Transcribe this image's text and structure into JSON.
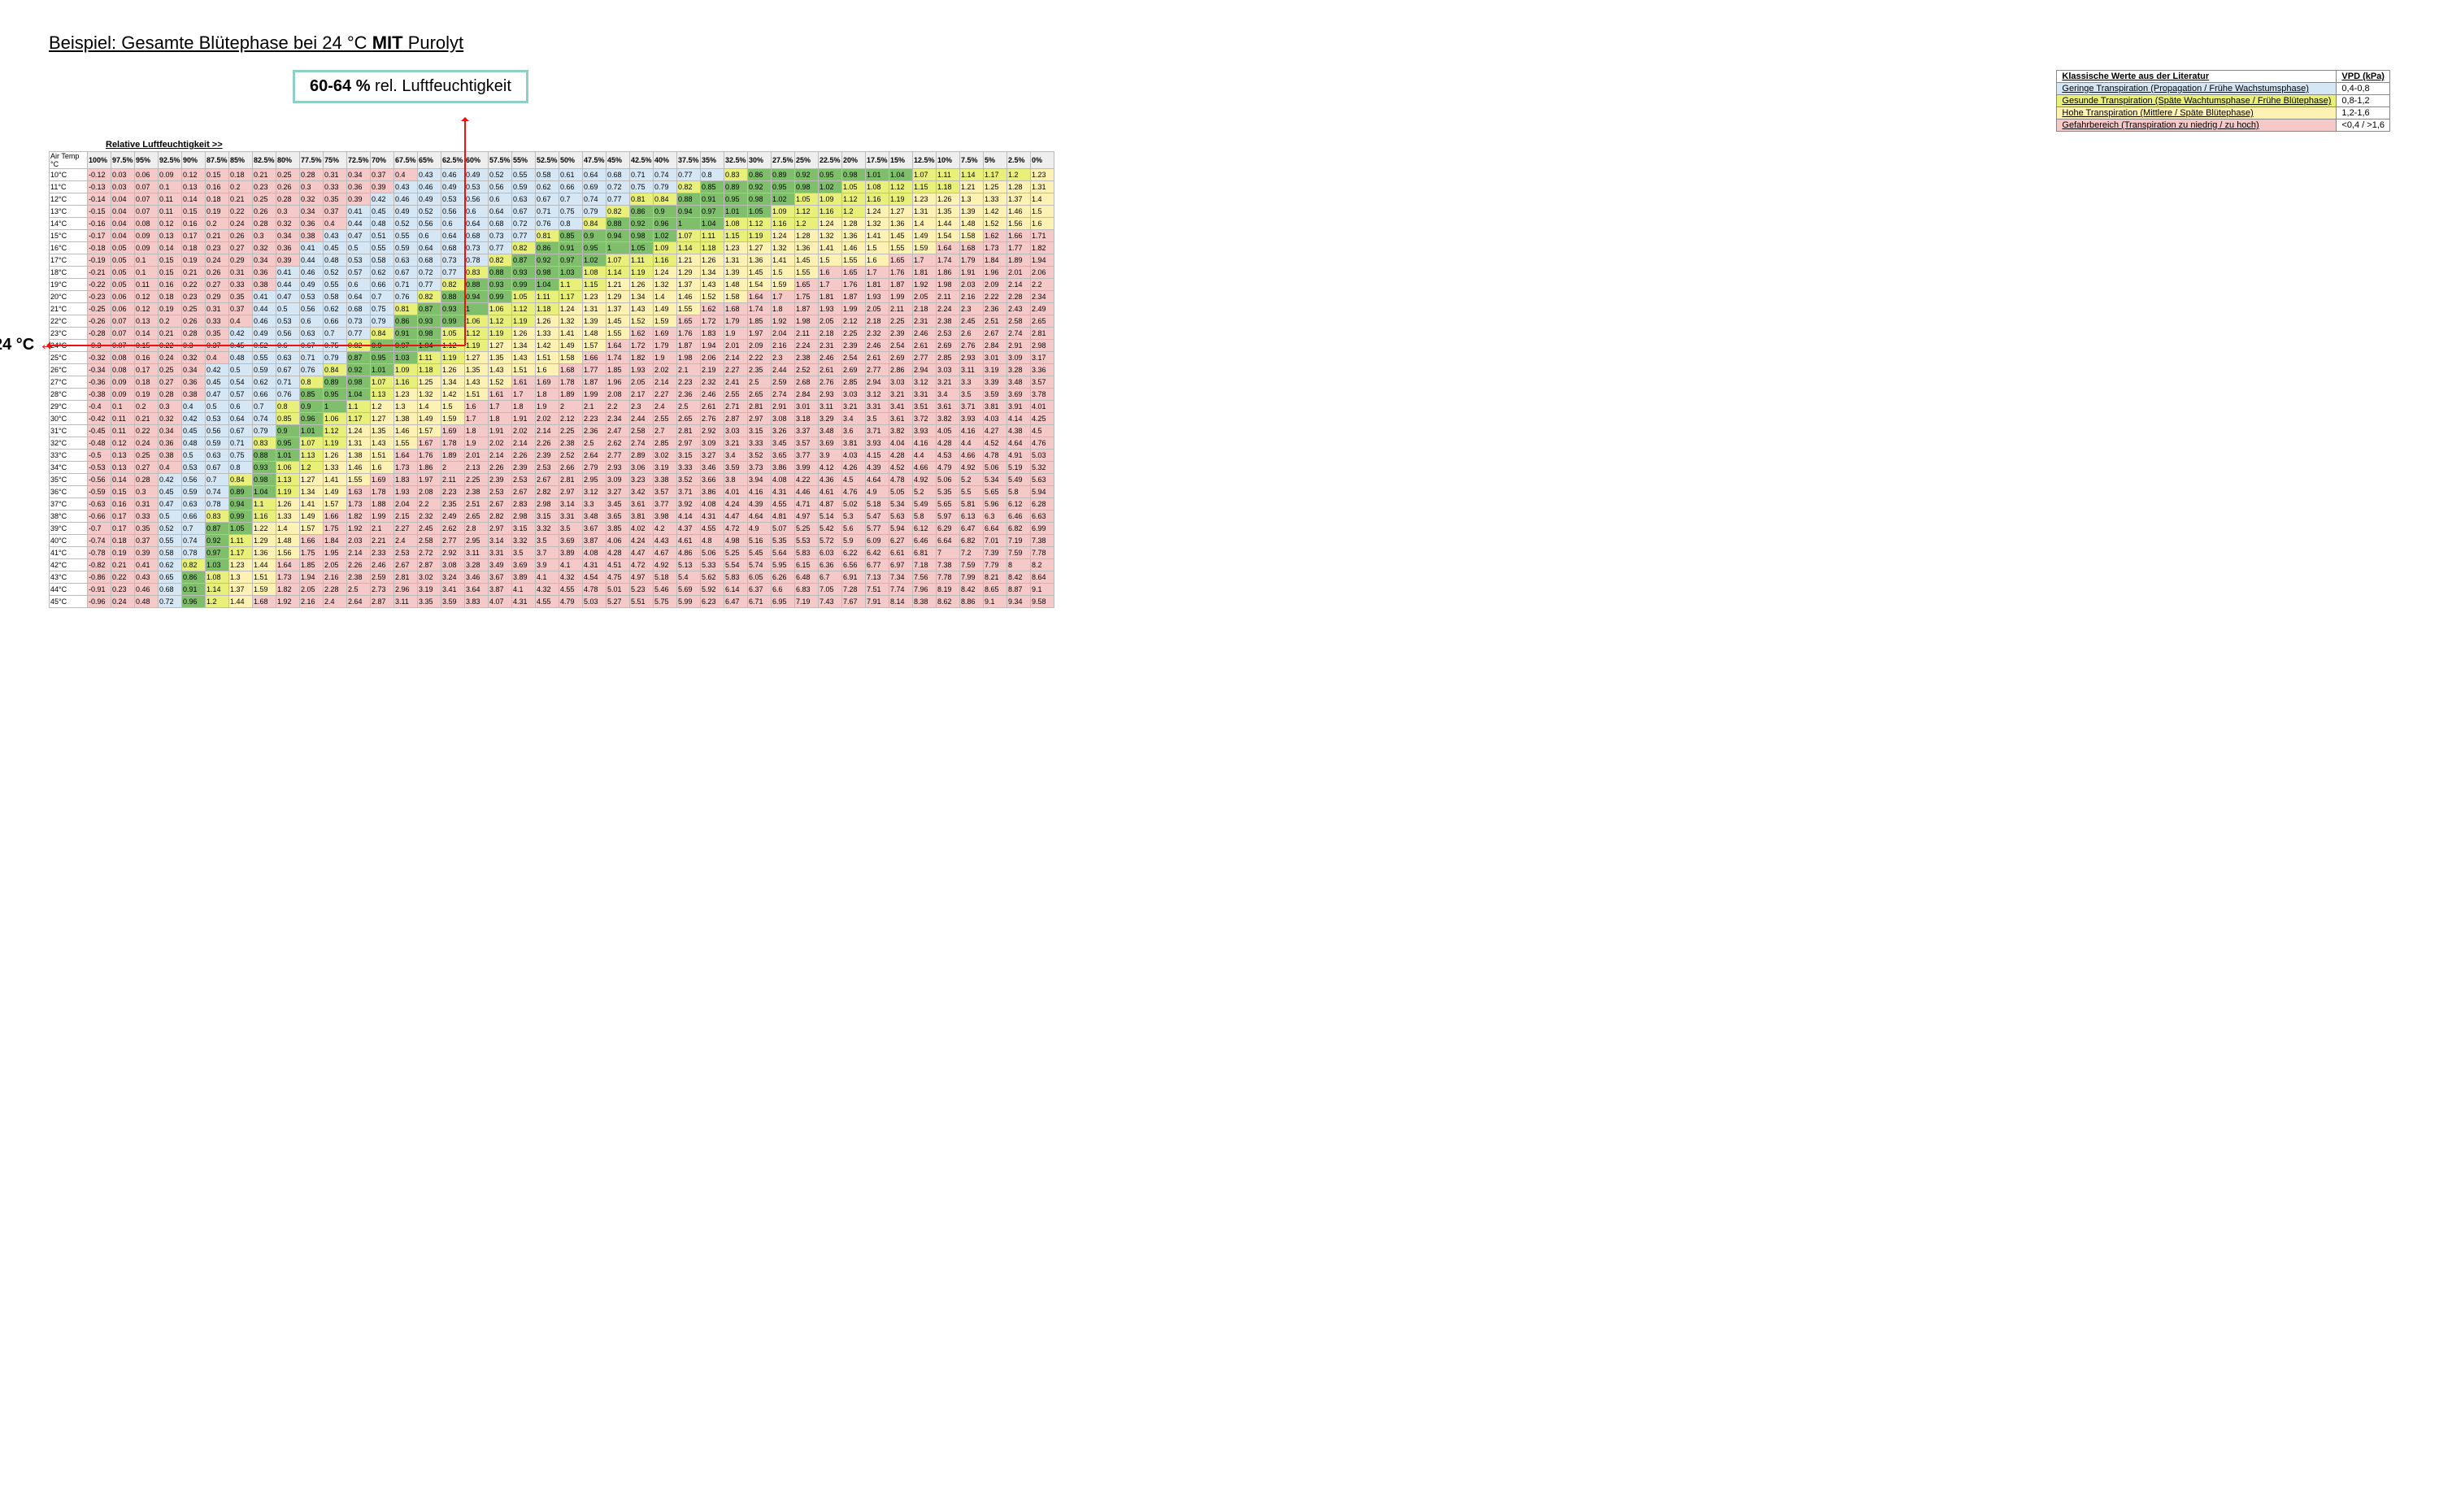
{
  "title_prefix": "Beispiel: Gesamte Blütephase bei 24 °C ",
  "title_bold": "MIT",
  "title_suffix": " Purolyt",
  "callout_bold": "60-64 %",
  "callout_rest": " rel. Luftfeuchtigkeit",
  "temp_callout": "24 °C",
  "rh_header": "Relative Luftfeuchtigkeit >>",
  "corner": "Air Temp °C",
  "legend": {
    "head_left": "Klassische Werte aus der Literatur",
    "head_right": "VPD (kPa)",
    "rows": [
      {
        "label": "Geringe Transpiration (Propagation / Frühe Wachstumsphase)",
        "range": "0,4-0,8",
        "color": "#d5e7f5"
      },
      {
        "label": "Gesunde Transpiration (Späte Wachtumsphase / Frühe Blütephase)",
        "range": "0,8-1,2",
        "color": "#e9f07a"
      },
      {
        "label": "Hohe Transpiration (Mittlere / Späte Blütephase)",
        "range": "1,2-1,6",
        "color": "#fdf2b3"
      },
      {
        "label": "Gefahrbereich (Transpiration zu niedrig / zu hoch)",
        "range": "<0,4 / >1,6",
        "color": "#f6c9c9"
      }
    ]
  },
  "colors": {
    "danger_low": "#f6c9c9",
    "low": "#d5e7f5",
    "healthy": "#e9f07a",
    "healthy_core": "#7fbf6b",
    "high": "#fdf2b3",
    "danger_high": "#f6c9c9"
  },
  "rh_steps": [
    100,
    97.5,
    95,
    92.5,
    90,
    87.5,
    85,
    82.5,
    80,
    77.5,
    75,
    72.5,
    70,
    67.5,
    65,
    62.5,
    60,
    57.5,
    55,
    52.5,
    50,
    47.5,
    45,
    42.5,
    40,
    37.5,
    35,
    32.5,
    30,
    27.5,
    25,
    22.5,
    20,
    17.5,
    15,
    12.5,
    10,
    7.5,
    5,
    2.5,
    0
  ],
  "temps": [
    10,
    11,
    12,
    13,
    14,
    15,
    16,
    17,
    18,
    19,
    20,
    21,
    22,
    23,
    24,
    25,
    26,
    27,
    28,
    29,
    30,
    31,
    32,
    33,
    34,
    35,
    36,
    37,
    38,
    39,
    40,
    41,
    42,
    43,
    44,
    45
  ],
  "svp": {
    "10": 1.228,
    "11": 1.313,
    "12": 1.403,
    "13": 1.498,
    "14": 1.599,
    "15": 1.706,
    "16": 1.819,
    "17": 1.938,
    "18": 2.065,
    "19": 2.198,
    "20": 2.339,
    "21": 2.488,
    "22": 2.645,
    "23": 2.81,
    "24": 2.985,
    "25": 3.169,
    "26": 3.363,
    "27": 3.567,
    "28": 3.782,
    "29": 4.008,
    "30": 4.246,
    "31": 4.495,
    "32": 4.758,
    "33": 5.033,
    "34": 5.322,
    "35": 5.626,
    "36": 5.944,
    "37": 6.278,
    "38": 6.628,
    "39": 6.994,
    "40": 7.378,
    "41": 7.78,
    "42": 8.201,
    "43": 8.641,
    "44": 9.101,
    "45": 9.582
  },
  "highlight_temp": 24,
  "highlight_rh": 62.5
}
